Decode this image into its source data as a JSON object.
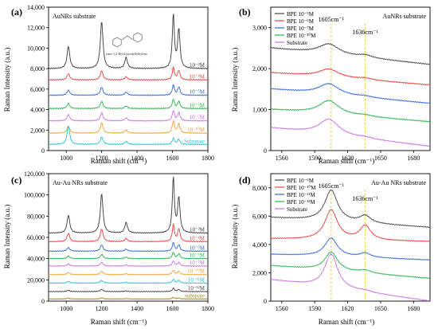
{
  "colors": {
    "black": "#3a3a3a",
    "red": "#f23c3c",
    "blue": "#2f66e0",
    "green": "#27b34a",
    "purple": "#c870e6",
    "orange": "#f5a033",
    "cyan": "#23c4d9",
    "dark": "#444444",
    "olive": "#9a8a1a",
    "guide": "#f2d23a"
  },
  "chart_data": [
    {
      "type": "line",
      "panel_label": "(a)",
      "title": "AuNRs substrate",
      "annotation": "trans-1,2-Bis(4-pyridyl)ethylene",
      "xlabel": "Raman shift (cm⁻¹)",
      "ylabel": "Raman Intensity (a.u.)",
      "xlim": [
        900,
        1800
      ],
      "ylim": [
        0,
        14000
      ],
      "xticks": [
        "1000",
        "1200",
        "1400",
        "1600",
        "1800"
      ],
      "yticks": [
        "0",
        "2,000",
        "4,000",
        "6,000",
        "8,000",
        "10,000",
        "12,000",
        "14,000"
      ],
      "peaks": [
        1012,
        1200,
        1338,
        1605,
        1636
      ],
      "peak_widths": [
        9,
        9,
        9,
        7,
        8
      ],
      "series": [
        {
          "label": "10⁻³M",
          "color": "black",
          "baseline": 8000,
          "peak_heights": [
            2200,
            4600,
            1100,
            5200,
            3800
          ]
        },
        {
          "label": "10⁻⁴M",
          "color": "red",
          "baseline": 6900,
          "peak_heights": [
            600,
            900,
            300,
            1200,
            900
          ]
        },
        {
          "label": "10⁻⁵M",
          "color": "blue",
          "baseline": 5400,
          "peak_heights": [
            500,
            800,
            300,
            1000,
            800
          ]
        },
        {
          "label": "10⁻⁶M",
          "color": "green",
          "baseline": 4100,
          "peak_heights": [
            500,
            700,
            250,
            900,
            700
          ]
        },
        {
          "label": "10⁻⁷M",
          "color": "purple",
          "baseline": 2900,
          "peak_heights": [
            600,
            800,
            300,
            1000,
            800
          ]
        },
        {
          "label": "10⁻¹⁰M",
          "color": "orange",
          "baseline": 1700,
          "peak_heights": [
            700,
            1000,
            300,
            1200,
            900
          ]
        },
        {
          "label": "Substrate",
          "color": "cyan",
          "baseline": 600,
          "peak_heights": [
            1800,
            700,
            300,
            600,
            500
          ]
        }
      ]
    },
    {
      "type": "line",
      "panel_label": "(b)",
      "title": "AuNRs substrate",
      "xlabel": "Raman shift (cm⁻¹)",
      "ylabel": "Raman Intensity (a.u.)",
      "xlim": [
        1550,
        1695
      ],
      "ylim": [
        0,
        3500
      ],
      "xticks": [
        "1560",
        "1590",
        "1620",
        "1650",
        "1680"
      ],
      "yticks": [
        "0",
        "1,000",
        "2,000",
        "3,000"
      ],
      "markers": [
        {
          "x": 1605,
          "label": "1605cm⁻¹"
        },
        {
          "x": 1636,
          "label": "1636cm⁻¹"
        }
      ],
      "legend_position": "top-left",
      "peaks": [
        1603,
        1636
      ],
      "peak_widths": [
        11,
        7
      ],
      "series": [
        {
          "name": "BPE 10⁻⁵M",
          "color": "dark",
          "baseline": 2500,
          "slope": -400,
          "peak_heights": [
            250,
            60
          ]
        },
        {
          "name": "BPE 10⁻⁶M",
          "color": "red",
          "baseline": 1900,
          "slope": -300,
          "peak_heights": [
            200,
            40
          ]
        },
        {
          "name": "BPE 10⁻⁷M",
          "color": "blue",
          "baseline": 1500,
          "slope": -350,
          "peak_heights": [
            260,
            30
          ]
        },
        {
          "name": "BPE 10⁻¹⁰M",
          "color": "green",
          "baseline": 1000,
          "slope": -300,
          "peak_heights": [
            330,
            30
          ]
        },
        {
          "name": "Substrate",
          "color": "purple",
          "baseline": 550,
          "slope": -450,
          "peak_heights": [
            380,
            30
          ]
        }
      ]
    },
    {
      "type": "line",
      "panel_label": "(c)",
      "title": "Au-Au NRs substrate",
      "xlabel": "Raman shift (cm⁻¹)",
      "ylabel": "Raman Intensity (a.u.)",
      "xlim": [
        900,
        1800
      ],
      "ylim": [
        0,
        120000
      ],
      "xticks": [
        "1000",
        "1200",
        "1400",
        "1600",
        "1800"
      ],
      "yticks": [
        "0",
        "20,000",
        "40,000",
        "60,000",
        "80,000",
        "100,000",
        "120,000"
      ],
      "peaks": [
        1012,
        1200,
        1338,
        1605,
        1636
      ],
      "peak_widths": [
        9,
        9,
        9,
        7,
        8
      ],
      "series": [
        {
          "label": "10⁻³M",
          "color": "black",
          "baseline": 64000,
          "peak_heights": [
            17000,
            37000,
            10000,
            52000,
            33000
          ]
        },
        {
          "label": "10⁻⁴M",
          "color": "red",
          "baseline": 56000,
          "peak_heights": [
            8000,
            12000,
            3000,
            16000,
            12000
          ]
        },
        {
          "label": "10⁻⁵M",
          "color": "blue",
          "baseline": 47000,
          "peak_heights": [
            3500,
            6000,
            2000,
            8000,
            6000
          ]
        },
        {
          "label": "10⁻⁶M",
          "color": "green",
          "baseline": 40000,
          "peak_heights": [
            2500,
            4000,
            1500,
            6000,
            4500
          ]
        },
        {
          "label": "10⁻⁷M",
          "color": "purple",
          "baseline": 33000,
          "peak_heights": [
            2000,
            3500,
            1000,
            5000,
            3500
          ]
        },
        {
          "label": "10⁻¹⁰M",
          "color": "orange",
          "baseline": 25000,
          "peak_heights": [
            1800,
            3000,
            800,
            4000,
            3000
          ]
        },
        {
          "label": "10⁻¹¹M",
          "color": "cyan",
          "baseline": 17000,
          "peak_heights": [
            1500,
            2500,
            700,
            3500,
            2500
          ]
        },
        {
          "label": "10⁻¹²M",
          "color": "dark",
          "baseline": 9000,
          "peak_heights": [
            1200,
            2000,
            600,
            3000,
            2000
          ]
        },
        {
          "label": "substrate",
          "color": "olive",
          "baseline": 2000,
          "peak_heights": [
            800,
            1200,
            400,
            1500,
            1000
          ]
        }
      ]
    },
    {
      "type": "line",
      "panel_label": "(d)",
      "title": "Au-Au NRs substrate",
      "xlabel": "Raman shift (cm⁻¹)",
      "ylabel": "Raman Intensity (a.u.)",
      "xlim": [
        1550,
        1695
      ],
      "ylim": [
        0,
        9000
      ],
      "xticks": [
        "1560",
        "1590",
        "1620",
        "1650",
        "1680"
      ],
      "yticks": [
        "0",
        "2,000",
        "4,000",
        "6,000",
        "8,000"
      ],
      "markers": [
        {
          "x": 1605,
          "label": "1605cm⁻¹"
        },
        {
          "x": 1636,
          "label": "1636cm⁻¹"
        }
      ],
      "legend_position": "top-left",
      "peaks": [
        1605,
        1636
      ],
      "peak_widths": [
        7,
        6
      ],
      "series": [
        {
          "name": "BPE 10⁻⁶M",
          "color": "dark",
          "baseline": 5900,
          "slope": -700,
          "peak_heights": [
            2200,
            500
          ]
        },
        {
          "name": "BPE 10⁻¹⁰M",
          "color": "red",
          "baseline": 4400,
          "slope": -200,
          "peak_heights": [
            2100,
            1000
          ]
        },
        {
          "name": "BPE 10⁻¹¹M",
          "color": "blue",
          "baseline": 3300,
          "slope": -400,
          "peak_heights": [
            1300,
            300
          ]
        },
        {
          "name": "BPE 10⁻¹²M",
          "color": "green",
          "baseline": 2500,
          "slope": -900,
          "peak_heights": [
            1300,
            200
          ]
        },
        {
          "name": "Substrate",
          "color": "purple",
          "baseline": 1500,
          "slope": -1500,
          "peak_heights": [
            2400,
            100
          ]
        }
      ]
    }
  ]
}
